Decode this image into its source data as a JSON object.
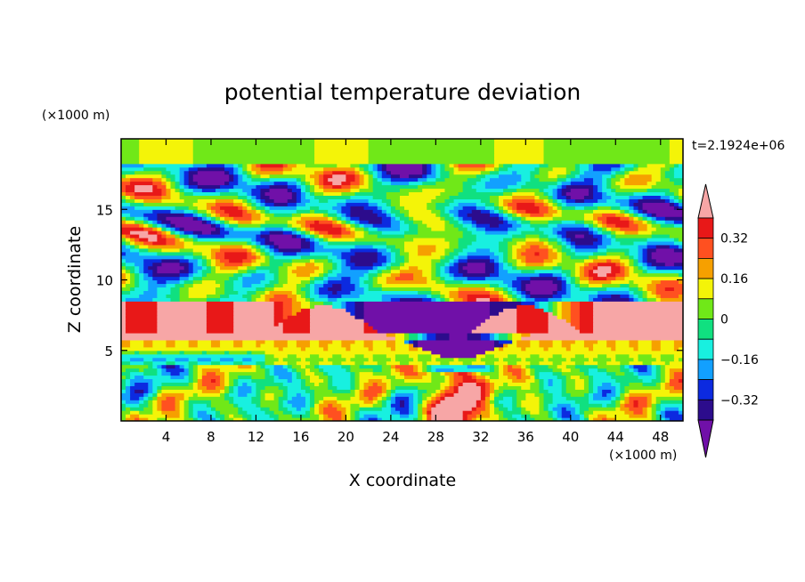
{
  "chart_data": {
    "type": "heatmap",
    "title": "potential temperature deviation",
    "xlabel": "X coordinate",
    "ylabel": "Z coordinate",
    "x_unit": "(×1000 m)",
    "y_unit": "(×1000 m)",
    "time_label": "t=2.1924e+06",
    "xlim": [
      0,
      50
    ],
    "ylim": [
      0,
      20
    ],
    "x_ticks": [
      4,
      8,
      12,
      16,
      20,
      24,
      28,
      32,
      36,
      40,
      44,
      48
    ],
    "y_ticks": [
      5,
      10,
      15
    ],
    "colorbar": {
      "levels": [
        -0.4,
        -0.32,
        -0.24,
        -0.16,
        -0.08,
        0,
        0.08,
        0.16,
        0.24,
        0.32,
        0.4
      ],
      "labels": [
        "0.32",
        "0.16",
        "0",
        "−0.16",
        "−0.32"
      ],
      "label_values": [
        0.32,
        0.16,
        0,
        -0.16,
        -0.32
      ],
      "colors": [
        "#7010a8",
        "#2c0c8c",
        "#0c2ae0",
        "#12a0ff",
        "#18f0e0",
        "#10e080",
        "#70e818",
        "#f4f408",
        "#f6a000",
        "#ff5020",
        "#e81818",
        "#f7a6a6"
      ]
    }
  }
}
